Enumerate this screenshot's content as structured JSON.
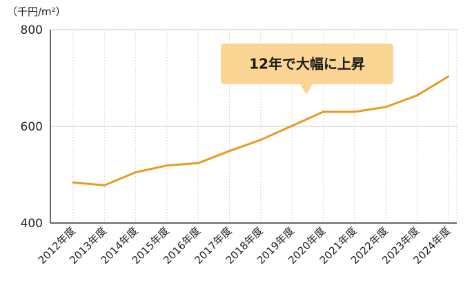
{
  "chart_data": {
    "type": "line",
    "unit_label": "（千円/m²）",
    "categories": [
      "2012年度",
      "2013年度",
      "2014年度",
      "2015年度",
      "2016年度",
      "2017年度",
      "2018年度",
      "2019年度",
      "2020年度",
      "2021年度",
      "2022年度",
      "2023年度",
      "2024年度"
    ],
    "values": [
      484,
      478,
      505,
      519,
      524,
      549,
      572,
      601,
      630,
      630,
      640,
      664,
      703
    ],
    "ylim": [
      400,
      800
    ],
    "yticks": [
      400,
      600,
      800
    ],
    "grid": true,
    "annotation": "12年で大幅に上昇",
    "colors": {
      "line": "#ea9a1f",
      "callout_fill": "#fbd593",
      "grid": "#c8c8c8",
      "axis": "#333333"
    }
  }
}
